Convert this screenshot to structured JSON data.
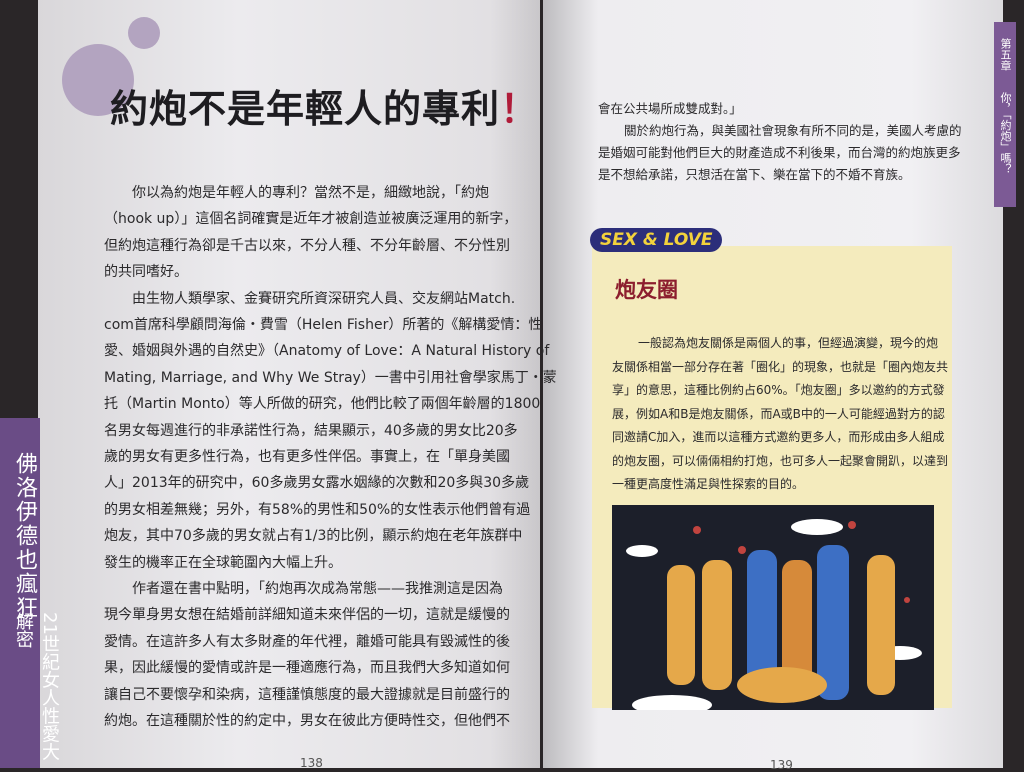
{
  "left_page": {
    "title": "約炮不是年輕人的專利！",
    "paragraphs": [
      [
        "你以為約炮是年輕人的專利？當然不是，細緻地說，「約炮",
        "（hook up）」這個名詞確實是近年才被創造並被廣泛運用的新字，",
        "但約炮這種行為卻是千古以來，不分人種、不分年齡層、不分性別",
        "的共同嗜好。"
      ],
      [
        "由生物人類學家、金賽研究所資深研究人員、交友網站Match.",
        "com首席科學顧問海倫・費雪（Helen Fisher）所著的《解構愛情：性",
        "愛、婚姻與外遇的自然史》（Anatomy of Love：A Natural History of",
        "Mating, Marriage, and Why We Stray）一書中引用社會學家馬丁・蒙",
        "托（Martin Monto）等人所做的研究，他們比較了兩個年齡層的1800",
        "名男女每週進行的非承諾性行為，結果顯示，40多歲的男女比20多",
        "歲的男女有更多性行為，也有更多性伴侶。事實上，在「單身美國",
        "人」2013年的研究中，60多歲男女露水姻緣的次數和20多與30多歲",
        "的男女相差無幾；另外，有58%的男性和50%的女性表示他們曾有過",
        "炮友，其中70多歲的男女就占有1/3的比例，顯示約炮在老年族群中",
        "發生的機率正在全球範圍內大幅上升。"
      ],
      [
        "作者還在書中點明，「約炮再次成為常態——我推測這是因為",
        "現今單身男女想在結婚前詳細知道未來伴侶的一切，這就是緩慢的",
        "愛情。在這許多人有太多財產的年代裡，離婚可能具有毀滅性的後",
        "果，因此緩慢的愛情或許是一種適應行為，而且我們大多知道如何",
        "讓自己不要懷孕和染病，這種謹慎態度的最大證據就是目前盛行的",
        "約炮。在這種關於性的約定中，男女在彼此方便時性交，但他們不"
      ]
    ],
    "side_tab": [
      "佛洛伊德也瘋狂",
      "21世紀女人性愛大解密"
    ],
    "page_number": "138"
  },
  "right_page": {
    "chapter_tab": [
      "第五章",
      "你，「約炮」嗎？"
    ],
    "paragraphs": [
      [
        "會在公共場所成雙成對。」"
      ],
      [
        "關於約炮行為，與美國社會現象有所不同的是，美國人考慮的",
        "是婚姻可能對他們巨大的財產造成不利後果，而台灣的約炮族更多",
        "是不想給承諾，只想活在當下、樂在當下的不婚不育族。"
      ]
    ],
    "box": {
      "label": "SEX & LOVE",
      "heading": "炮友圈",
      "lines": [
        "一般認為炮友關係是兩個人的事，但經過演變，現今的炮",
        "友關係相當一部分存在著「圈化」的現象，也就是「圈內炮友共",
        "享」的意思，這種比例約占60%。「炮友圈」多以邀約的方式發",
        "展，例如A和B是炮友關係，而A或B中的一人可能經過對方的認",
        "同邀請C加入，進而以這種方式邀約更多人，而形成由多人組成",
        "的炮友圈，可以倆倆相約打炮，也可多人一起聚會開趴，以達到",
        "一種更高度性滿足與性探索的目的。"
      ]
    },
    "page_number": "139"
  }
}
